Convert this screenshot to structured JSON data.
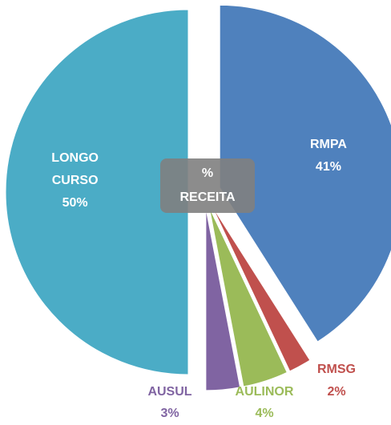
{
  "chart_data": {
    "type": "pie",
    "title": "% RECEITA",
    "categories": [
      "RMPA",
      "RMSG",
      "AULINOR",
      "AUSUL",
      "LONGO CURSO"
    ],
    "values": [
      41,
      2,
      4,
      3,
      50
    ],
    "value_labels": [
      "41%",
      "2%",
      "4%",
      "3%",
      "50%"
    ],
    "colors": [
      "#4f81bd",
      "#c0504d",
      "#9bbb59",
      "#8064a2",
      "#4bacc6"
    ]
  }
}
